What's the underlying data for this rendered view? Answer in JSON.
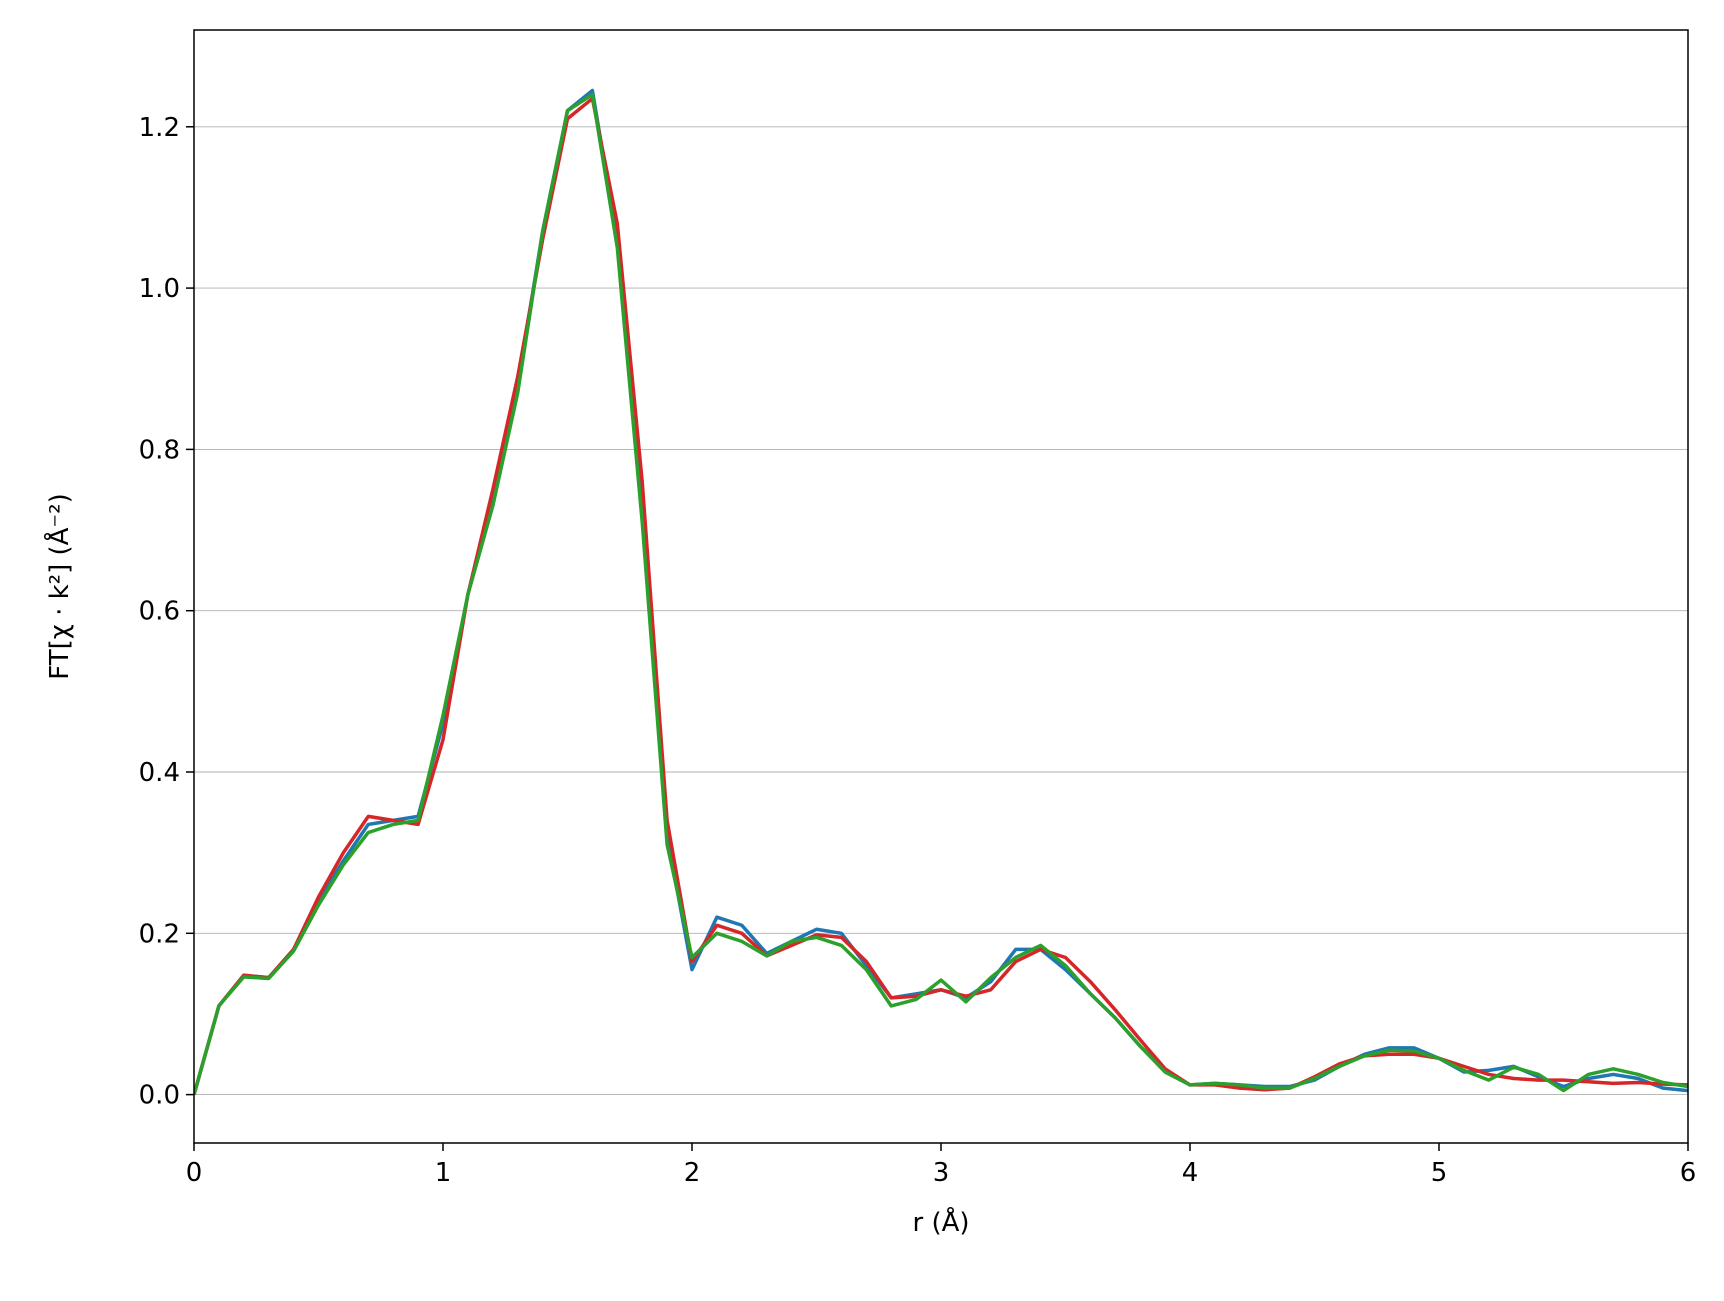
{
  "chart_data": {
    "type": "line",
    "xlabel": "r (Å)",
    "ylabel": "FT[χ · k²] (Å⁻²)",
    "x": [
      0,
      0.1,
      0.2,
      0.3,
      0.4,
      0.5,
      0.6,
      0.7,
      0.8,
      0.9,
      1.0,
      1.1,
      1.2,
      1.3,
      1.4,
      1.5,
      1.6,
      1.7,
      1.8,
      1.9,
      2.0,
      2.1,
      2.2,
      2.3,
      2.4,
      2.5,
      2.6,
      2.7,
      2.8,
      2.9,
      3.0,
      3.1,
      3.2,
      3.3,
      3.4,
      3.5,
      3.6,
      3.7,
      3.8,
      3.9,
      4.0,
      4.1,
      4.2,
      4.3,
      4.4,
      4.5,
      4.6,
      4.7,
      4.8,
      4.9,
      5.0,
      5.1,
      5.2,
      5.3,
      5.4,
      5.5,
      5.6,
      5.7,
      5.8,
      5.9,
      6.0
    ],
    "series": [
      {
        "color": "#1f77b4",
        "values": [
          0,
          0.11,
          0.148,
          0.145,
          0.18,
          0.24,
          0.29,
          0.335,
          0.34,
          0.345,
          0.46,
          0.62,
          0.74,
          0.88,
          1.07,
          1.22,
          1.245,
          1.06,
          0.72,
          0.32,
          0.155,
          0.22,
          0.21,
          0.175,
          0.19,
          0.205,
          0.2,
          0.16,
          0.12,
          0.125,
          0.13,
          0.12,
          0.14,
          0.18,
          0.18,
          0.155,
          0.125,
          0.095,
          0.06,
          0.03,
          0.012,
          0.014,
          0.012,
          0.01,
          0.01,
          0.018,
          0.035,
          0.05,
          0.058,
          0.058,
          0.045,
          0.028,
          0.03,
          0.035,
          0.022,
          0.01,
          0.02,
          0.025,
          0.02,
          0.008,
          0.005
        ]
      },
      {
        "color": "#d62728",
        "values": [
          0,
          0.11,
          0.148,
          0.145,
          0.18,
          0.245,
          0.3,
          0.345,
          0.34,
          0.335,
          0.44,
          0.62,
          0.75,
          0.89,
          1.06,
          1.21,
          1.235,
          1.08,
          0.76,
          0.34,
          0.165,
          0.21,
          0.2,
          0.172,
          0.185,
          0.198,
          0.195,
          0.165,
          0.12,
          0.122,
          0.13,
          0.122,
          0.13,
          0.165,
          0.18,
          0.17,
          0.14,
          0.105,
          0.068,
          0.032,
          0.012,
          0.012,
          0.008,
          0.006,
          0.008,
          0.022,
          0.038,
          0.048,
          0.05,
          0.05,
          0.045,
          0.035,
          0.025,
          0.02,
          0.018,
          0.018,
          0.016,
          0.014,
          0.015,
          0.013,
          0.012
        ]
      },
      {
        "color": "#2ca02c",
        "values": [
          0,
          0.11,
          0.146,
          0.144,
          0.178,
          0.235,
          0.285,
          0.325,
          0.335,
          0.34,
          0.47,
          0.62,
          0.73,
          0.87,
          1.07,
          1.22,
          1.24,
          1.05,
          0.71,
          0.31,
          0.17,
          0.2,
          0.19,
          0.172,
          0.19,
          0.195,
          0.185,
          0.155,
          0.11,
          0.118,
          0.142,
          0.115,
          0.145,
          0.17,
          0.185,
          0.16,
          0.125,
          0.095,
          0.06,
          0.028,
          0.012,
          0.014,
          0.012,
          0.008,
          0.008,
          0.02,
          0.035,
          0.048,
          0.055,
          0.054,
          0.045,
          0.03,
          0.018,
          0.034,
          0.025,
          0.005,
          0.025,
          0.032,
          0.025,
          0.015,
          0.01
        ]
      }
    ],
    "xlim": [
      0,
      6
    ],
    "ylim": [
      -0.06,
      1.32
    ],
    "xticks": [
      0,
      1,
      2,
      3,
      4,
      5,
      6
    ],
    "yticks": [
      {
        "value": 0,
        "label": "0.0"
      },
      0.2,
      0.4,
      0.6,
      0.8,
      {
        "value": 1,
        "label": "1.0"
      },
      1.2
    ],
    "grid": "y"
  }
}
